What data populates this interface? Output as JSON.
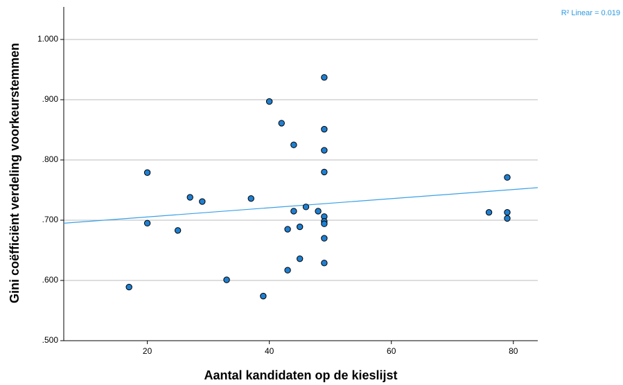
{
  "chart_data": {
    "type": "scatter",
    "x_label": "Aantal kandidaten op de kieslijst",
    "y_label": "Gini coëfficiënt verdeling voorkeurstemmen",
    "annotation": "R² Linear = 0.019",
    "xlim": [
      6.3,
      84
    ],
    "ylim": [
      0.5,
      1.054
    ],
    "xticks": [
      20,
      40,
      60,
      80
    ],
    "yticks": [
      {
        "value": 0.5,
        "label": ".500"
      },
      {
        "value": 0.6,
        "label": ".600"
      },
      {
        "value": 0.7,
        "label": ".700"
      },
      {
        "value": 0.8,
        "label": ".800"
      },
      {
        "value": 0.9,
        "label": ".900"
      },
      {
        "value": 1.0,
        "label": "1.000"
      }
    ],
    "grid": true,
    "point_color": "#1f7fd0",
    "line_color": "#3aa0e6",
    "fit_line": {
      "x": [
        6.3,
        84
      ],
      "y": [
        0.695,
        0.754
      ]
    },
    "series": [
      {
        "name": "Gini",
        "color": "#1f7fd0",
        "x": [
          49,
          40,
          42,
          49,
          44,
          49,
          20,
          49,
          79,
          27,
          29,
          37,
          46,
          44,
          48,
          76,
          79,
          49,
          79,
          20,
          49,
          49,
          45,
          43,
          25,
          49,
          45,
          49,
          43,
          33,
          17,
          39
        ],
        "values": [
          0.937,
          0.897,
          0.861,
          0.851,
          0.825,
          0.816,
          0.779,
          0.78,
          0.771,
          0.738,
          0.731,
          0.736,
          0.722,
          0.715,
          0.715,
          0.713,
          0.713,
          0.706,
          0.703,
          0.695,
          0.698,
          0.694,
          0.689,
          0.685,
          0.683,
          0.67,
          0.636,
          0.629,
          0.617,
          0.601,
          0.589,
          0.574
        ]
      }
    ]
  }
}
